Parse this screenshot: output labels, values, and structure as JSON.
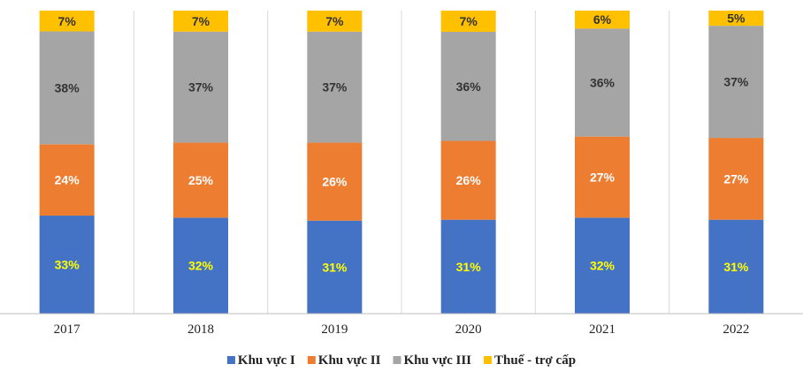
{
  "chart_data": {
    "type": "bar",
    "stacked": true,
    "percent_stacked": true,
    "title": "",
    "xlabel": "",
    "ylabel": "",
    "categories": [
      "2017",
      "2018",
      "2019",
      "2020",
      "2021",
      "2022"
    ],
    "series": [
      {
        "name": "Khu vực I",
        "color": "#4472C4",
        "label_color": "#FFFF00",
        "values": [
          33,
          32,
          31,
          31,
          32,
          31
        ]
      },
      {
        "name": "Khu vực II",
        "color": "#ED7D31",
        "label_color": "#FFFFFF",
        "values": [
          24,
          25,
          26,
          26,
          27,
          27
        ]
      },
      {
        "name": "Khu vực III",
        "color": "#A5A5A5",
        "label_color": "#333333",
        "values": [
          38,
          37,
          37,
          36,
          36,
          37
        ]
      },
      {
        "name": "Thuế - trợ cấp",
        "color": "#FFC000",
        "label_color": "#333333",
        "values": [
          7,
          7,
          7,
          7,
          6,
          5
        ]
      }
    ],
    "data_labels": {
      "format": "percent",
      "strings": [
        [
          "33%",
          "32%",
          "31%",
          "31%",
          "32%",
          "31%"
        ],
        [
          "24%",
          "25%",
          "26%",
          "26%",
          "27%",
          "27%"
        ],
        [
          "38%",
          "37%",
          "37%",
          "36%",
          "36%",
          "37%"
        ],
        [
          "7%",
          "7%",
          "7%",
          "7%",
          "6%",
          "5%"
        ]
      ]
    },
    "legend": {
      "position": "bottom"
    },
    "grid": false,
    "category_separators": true
  }
}
